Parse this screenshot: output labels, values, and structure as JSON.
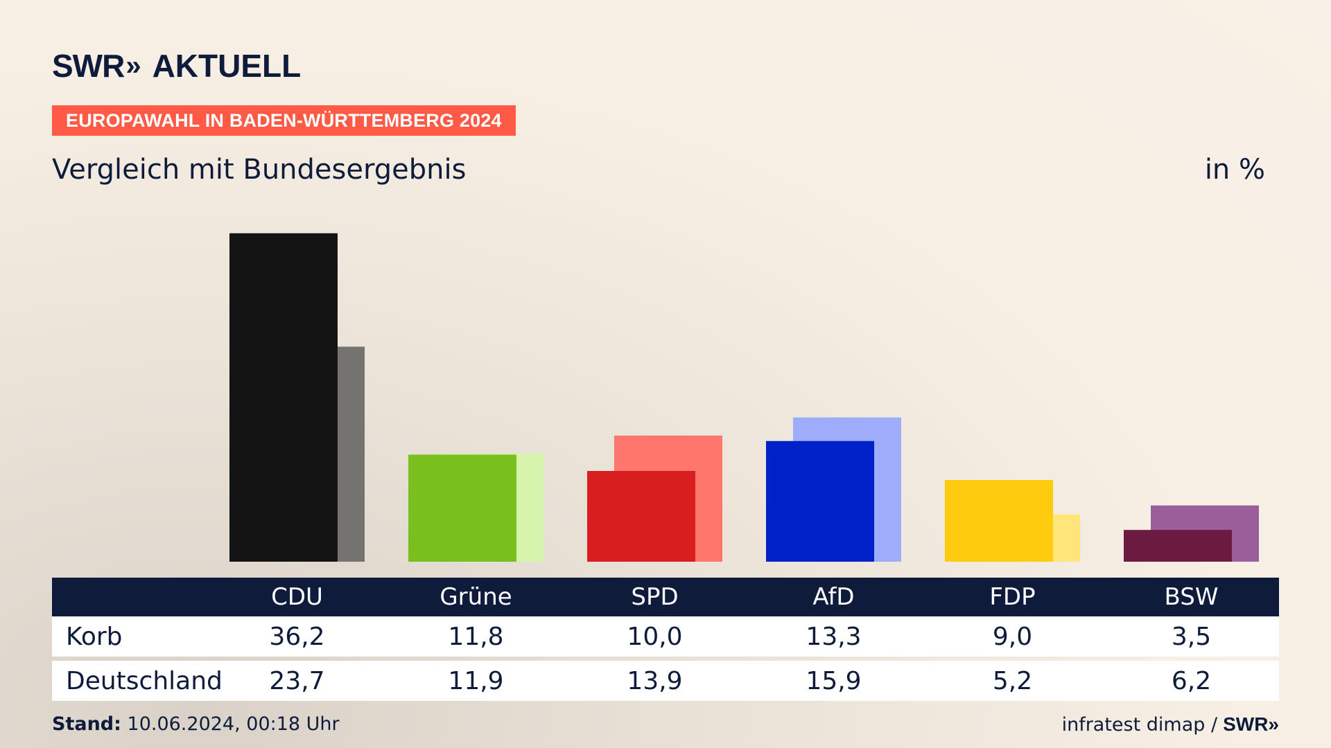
{
  "header": {
    "logo_text": "SWR",
    "logo_chevrons": "»",
    "logo_suffix": "AKTUELL",
    "badge": "EUROPAWAHL IN BADEN-WÜRTTEMBERG 2024",
    "subtitle": "Vergleich mit Bundesergebnis",
    "unit": "in %"
  },
  "chart_data": {
    "type": "bar",
    "title": "Vergleich mit Bundesergebnis",
    "ylabel": "in %",
    "ylim": [
      0,
      40
    ],
    "grid": false,
    "categories": [
      "CDU",
      "Grüne",
      "SPD",
      "AfD",
      "FDP",
      "BSW"
    ],
    "series": [
      {
        "name": "Korb",
        "values": [
          36.2,
          11.8,
          10.0,
          13.3,
          9.0,
          3.5
        ],
        "labels": [
          "36,2",
          "11,8",
          "10,0",
          "13,3",
          "9,0",
          "3,5"
        ],
        "colors": [
          "#141414",
          "#79bf1d",
          "#d81e1e",
          "#0021c8",
          "#ffcc0d",
          "#6b1a40"
        ]
      },
      {
        "name": "Deutschland",
        "values": [
          23.7,
          11.9,
          13.9,
          15.9,
          5.2,
          6.2
        ],
        "labels": [
          "23,7",
          "11,9",
          "13,9",
          "15,9",
          "5,2",
          "6,2"
        ],
        "colors": [
          "#757370",
          "#d7f5aa",
          "#ff766c",
          "#9eacfc",
          "#ffe57a",
          "#9a5f9a"
        ]
      }
    ]
  },
  "footer": {
    "stand_label": "Stand:",
    "stand_value": "10.06.2024, 00:18 Uhr",
    "source": "infratest dimap /",
    "source_logo": "SWR»"
  }
}
